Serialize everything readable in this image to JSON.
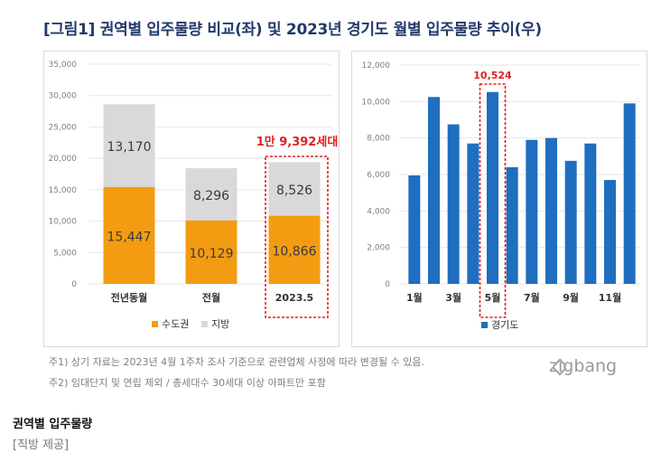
{
  "title": "[그림1] 권역별 입주물량 비교(좌) 및 2023년 경기도 월별 입주물량 추이(우)",
  "chart_data": [
    {
      "type": "bar",
      "stacked": true,
      "categories": [
        "전년동월",
        "전월",
        "2023.5"
      ],
      "series": [
        {
          "name": "수도권",
          "values": [
            15447,
            10129,
            10866
          ],
          "labels": [
            "15,447",
            "10,129",
            "10,866"
          ],
          "color": "#f39c12"
        },
        {
          "name": "지방",
          "values": [
            13170,
            8296,
            8526
          ],
          "labels": [
            "13,170",
            "8,296",
            "8,526"
          ],
          "color": "#d9d9d9"
        }
      ],
      "ylim": [
        0,
        35000
      ],
      "yticks": [
        0,
        5000,
        10000,
        15000,
        20000,
        25000,
        30000,
        35000
      ],
      "ytick_labels": [
        "0",
        "5,000",
        "10,000",
        "15,000",
        "20,000",
        "25,000",
        "30,000",
        "35,000"
      ],
      "annotation": "1만 9,392세대",
      "highlight_category": "2023.5",
      "legend": "bottom"
    },
    {
      "type": "bar",
      "categories": [
        "1월",
        "2월",
        "3월",
        "4월",
        "5월",
        "6월",
        "7월",
        "8월",
        "9월",
        "10월",
        "11월",
        "12월"
      ],
      "x_tick_labels": [
        "1월",
        "",
        "3월",
        "",
        "5월",
        "",
        "7월",
        "",
        "9월",
        "",
        "11월",
        ""
      ],
      "series": [
        {
          "name": "경기도",
          "values": [
            5950,
            10250,
            8750,
            7700,
            10524,
            6400,
            7900,
            8000,
            6750,
            7700,
            5700,
            9900
          ],
          "color": "#1f6ebf"
        }
      ],
      "ylim": [
        0,
        12000
      ],
      "yticks": [
        0,
        2000,
        4000,
        6000,
        8000,
        10000,
        12000
      ],
      "ytick_labels": [
        "0",
        "2,000",
        "4,000",
        "6,000",
        "8,000",
        "10,000",
        "12,000"
      ],
      "annotation": "10,524",
      "highlight_category": "5월",
      "legend": "bottom"
    }
  ],
  "notes": [
    "주1) 상기 자료는 2023년 4월 1주차 조사 기준으로 관련업체 사정에 따라 변경될 수 있음.",
    "주2) 임대단지 및 연립 제외 / 총세대수 30세대 이상 아파트만 포함"
  ],
  "logo": "zigbang",
  "caption": {
    "title": "권역별 입주물량",
    "source": "[직방 제공]"
  },
  "colors": {
    "title": "#233a6b",
    "metro": "#f39c12",
    "regional": "#d9d9d9",
    "gyeonggi": "#1f6ebf",
    "highlight": "#e02020"
  }
}
